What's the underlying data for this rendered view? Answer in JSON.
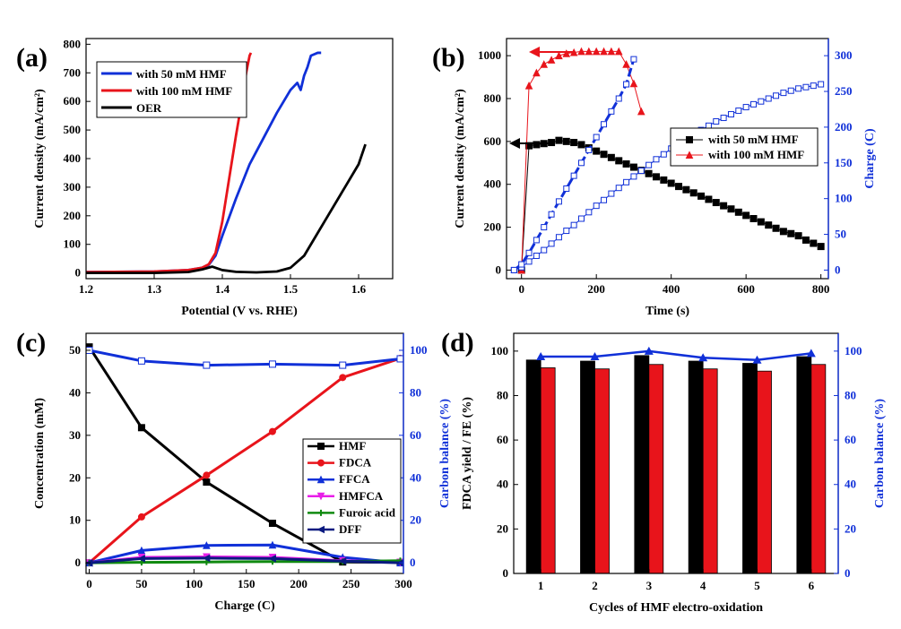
{
  "colors": {
    "black": "#000000",
    "red": "#e8141b",
    "blue": "#1030d8",
    "magenta": "#e81ee8",
    "green": "#108a10",
    "darkblue": "#0a1a80"
  },
  "chart_data": [
    {
      "panel": "(a)",
      "type": "line",
      "xlabel": "Potential (V vs. RHE)",
      "ylabel": "Current density (mA/cm²)",
      "xlim": [
        1.2,
        1.65
      ],
      "ylim": [
        -20,
        820
      ],
      "xticks": [
        1.2,
        1.3,
        1.4,
        1.5,
        1.6
      ],
      "yticks": [
        0,
        100,
        200,
        300,
        400,
        500,
        600,
        700,
        800
      ],
      "legend_position": "top-left",
      "series": [
        {
          "name": "with 50 mM HMF",
          "color": "#1030d8",
          "x": [
            1.2,
            1.3,
            1.35,
            1.37,
            1.38,
            1.39,
            1.4,
            1.42,
            1.44,
            1.46,
            1.48,
            1.5,
            1.51,
            1.515,
            1.52,
            1.525,
            1.53,
            1.54,
            1.545
          ],
          "y": [
            3,
            5,
            10,
            18,
            28,
            60,
            130,
            260,
            380,
            470,
            560,
            640,
            665,
            640,
            690,
            720,
            760,
            770,
            770
          ]
        },
        {
          "name": "with 100 mM HMF",
          "color": "#e8141b",
          "x": [
            1.2,
            1.3,
            1.35,
            1.37,
            1.38,
            1.39,
            1.4,
            1.41,
            1.42,
            1.43,
            1.435,
            1.44,
            1.442
          ],
          "y": [
            3,
            5,
            10,
            18,
            30,
            70,
            180,
            330,
            480,
            620,
            700,
            760,
            770
          ]
        },
        {
          "name": "OER",
          "color": "#000000",
          "x": [
            1.2,
            1.3,
            1.35,
            1.37,
            1.385,
            1.4,
            1.42,
            1.45,
            1.48,
            1.5,
            1.52,
            1.55,
            1.58,
            1.6,
            1.61
          ],
          "y": [
            0,
            0,
            3,
            12,
            22,
            10,
            4,
            2,
            5,
            18,
            60,
            180,
            300,
            380,
            450
          ]
        }
      ]
    },
    {
      "panel": "(b)",
      "type": "scatter",
      "xlabel": "Time (s)",
      "ylabel": "Current density (mA/cm²)",
      "y2label": "Charge (C)",
      "xlim": [
        -40,
        820
      ],
      "ylim": [
        -40,
        1080
      ],
      "y2lim": [
        -12,
        324
      ],
      "xticks": [
        0,
        200,
        400,
        600,
        800
      ],
      "yticks": [
        0,
        200,
        400,
        600,
        800,
        1000
      ],
      "y2ticks": [
        0,
        50,
        100,
        150,
        200,
        250,
        300
      ],
      "legend_position": "center-right",
      "series": [
        {
          "name": "with 50 mM HMF",
          "color": "#000000",
          "axis": "left",
          "marker": "filled-square",
          "x": [
            0,
            20,
            40,
            60,
            80,
            100,
            120,
            140,
            160,
            180,
            200,
            220,
            240,
            260,
            280,
            300,
            320,
            340,
            360,
            380,
            400,
            420,
            440,
            460,
            480,
            500,
            520,
            540,
            560,
            580,
            600,
            620,
            640,
            660,
            680,
            700,
            720,
            740,
            760,
            780,
            800
          ],
          "y": [
            0,
            580,
            585,
            590,
            595,
            605,
            600,
            595,
            585,
            570,
            555,
            540,
            525,
            510,
            495,
            480,
            465,
            450,
            435,
            420,
            405,
            390,
            375,
            360,
            345,
            330,
            315,
            300,
            285,
            270,
            255,
            240,
            225,
            210,
            195,
            180,
            170,
            160,
            140,
            125,
            110
          ]
        },
        {
          "name": "with 100 mM HMF",
          "color": "#e8141b",
          "axis": "left",
          "marker": "filled-triangle",
          "x": [
            0,
            20,
            40,
            60,
            80,
            100,
            120,
            140,
            160,
            180,
            200,
            220,
            240,
            260,
            280,
            300,
            320
          ],
          "y": [
            0,
            860,
            920,
            960,
            980,
            1000,
            1010,
            1015,
            1020,
            1020,
            1020,
            1020,
            1020,
            1020,
            960,
            870,
            740
          ]
        },
        {
          "color": "#1030d8",
          "axis": "right",
          "marker": "open-square",
          "x": [
            -20,
            0,
            20,
            40,
            60,
            80,
            100,
            120,
            140,
            160,
            180,
            200,
            220,
            240,
            260,
            280,
            300,
            320,
            340,
            360,
            380,
            400,
            420,
            440,
            460,
            480,
            500,
            520,
            540,
            560,
            580,
            600,
            620,
            640,
            660,
            680,
            700,
            720,
            740,
            760,
            780,
            800
          ],
          "y": [
            0,
            4,
            12,
            20,
            28,
            37,
            46,
            55,
            63,
            72,
            81,
            90,
            98,
            107,
            115,
            123,
            131,
            139,
            147,
            155,
            162,
            170,
            177,
            184,
            190,
            196,
            202,
            208,
            213,
            218,
            223,
            228,
            232,
            236,
            240,
            244,
            248,
            251,
            254,
            256,
            258,
            260
          ]
        },
        {
          "color": "#1030d8",
          "axis": "right",
          "marker": "open-square",
          "x": [
            -20,
            0,
            20,
            40,
            60,
            80,
            100,
            120,
            140,
            160,
            180,
            200,
            220,
            240,
            260,
            280,
            300
          ],
          "y": [
            0,
            8,
            24,
            42,
            60,
            78,
            96,
            114,
            132,
            150,
            168,
            186,
            204,
            222,
            240,
            260,
            295
          ]
        }
      ]
    },
    {
      "panel": "(c)",
      "type": "line",
      "xlabel": "Charge (C)",
      "ylabel": "Concentration (mM)",
      "y2label": "Carbon balance (%)",
      "xlim": [
        -3,
        300
      ],
      "ylim": [
        -2.5,
        54
      ],
      "y2lim": [
        -5,
        108
      ],
      "xticks": [
        0,
        50,
        100,
        150,
        200,
        250,
        300
      ],
      "yticks": [
        0,
        10,
        20,
        30,
        40,
        50
      ],
      "y2ticks": [
        0,
        20,
        40,
        60,
        80,
        100
      ],
      "legend_position": "center-right",
      "series": [
        {
          "name": "HMF",
          "color": "#000000",
          "marker": "square",
          "x": [
            0,
            50,
            112,
            175,
            242,
            297
          ],
          "y": [
            50.8,
            31.8,
            19,
            9.3,
            0.2,
            0.1
          ]
        },
        {
          "name": "FDCA",
          "color": "#e8141b",
          "marker": "circle",
          "x": [
            0,
            50,
            112,
            175,
            242,
            297
          ],
          "y": [
            0,
            10.8,
            20.6,
            30.9,
            43.6,
            48.1
          ]
        },
        {
          "name": "FFCA",
          "color": "#1030d8",
          "marker": "triangle",
          "x": [
            0,
            50,
            112,
            175,
            242,
            297
          ],
          "y": [
            0,
            2.9,
            4.1,
            4.2,
            1.3,
            0
          ]
        },
        {
          "name": "HMFCA",
          "color": "#e81ee8",
          "marker": "down-triangle",
          "x": [
            0,
            50,
            112,
            175,
            242,
            297
          ],
          "y": [
            0,
            1.3,
            1.4,
            1.3,
            0.5,
            0.1
          ]
        },
        {
          "name": "Furoic acid",
          "color": "#108a10",
          "marker": "cross",
          "x": [
            0,
            50,
            112,
            175,
            242,
            297
          ],
          "y": [
            0,
            0.1,
            0.2,
            0.3,
            0.3,
            0.5
          ]
        },
        {
          "name": "DFF",
          "color": "#0a1a80",
          "marker": "left-triangle",
          "x": [
            0,
            50,
            112,
            175,
            242,
            297
          ],
          "y": [
            0,
            1.0,
            1.1,
            1.0,
            0.4,
            0
          ]
        },
        {
          "color": "#1030d8",
          "marker": "open-square",
          "axis": "right",
          "x": [
            0,
            50,
            112,
            175,
            242,
            297
          ],
          "y": [
            100,
            95,
            93,
            93.5,
            93,
            96
          ]
        }
      ]
    },
    {
      "panel": "(d)",
      "type": "bar",
      "xlabel": "Cycles of HMF electro-oxidation",
      "ylabel": "FDCA yield / FE (%)",
      "y2label": "Carbon balance (%)",
      "categories": [
        "1",
        "2",
        "3",
        "4",
        "5",
        "6"
      ],
      "ylim": [
        0,
        108
      ],
      "y2lim": [
        0,
        108
      ],
      "yticks": [
        0,
        20,
        40,
        60,
        80,
        100
      ],
      "y2ticks": [
        0,
        20,
        40,
        60,
        80,
        100
      ],
      "series": [
        {
          "color": "#000000",
          "values": [
            96,
            95.5,
            98,
            95.5,
            94.5,
            97.5
          ]
        },
        {
          "color": "#e8141b",
          "values": [
            92.5,
            92,
            94,
            92,
            91,
            94
          ]
        },
        {
          "color": "#1030d8",
          "type": "line",
          "axis": "right",
          "values": [
            97.5,
            97.5,
            100,
            97,
            96,
            99
          ]
        }
      ]
    }
  ]
}
